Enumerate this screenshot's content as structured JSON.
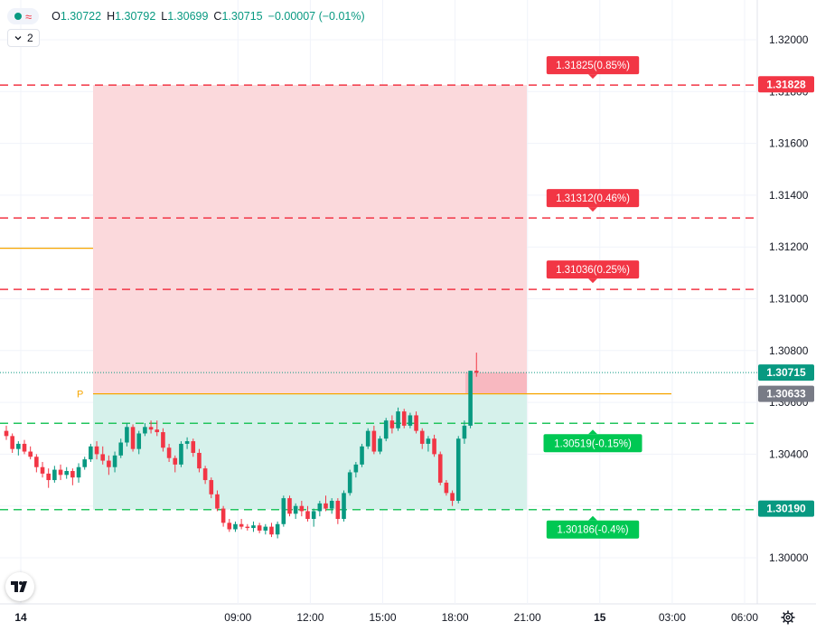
{
  "symbol_legend": {
    "dot_icon": "green-status-dot",
    "wave_icon": "wave-icon",
    "open_label": "O",
    "open": "1.30722",
    "high_label": "H",
    "high": "1.30792",
    "low_label": "L",
    "low": "1.30699",
    "close_label": "C",
    "close": "1.30715",
    "change": "−0.00007 (−0.01%)"
  },
  "indicator_toggle": {
    "icon": "chevron-down-icon",
    "count": "2"
  },
  "price_axis": {
    "ticks": [
      "1.32000",
      "1.31800",
      "1.31600",
      "1.31400",
      "1.31200",
      "1.31000",
      "1.30800",
      "1.30600",
      "1.30400",
      "1.30200",
      "1.30000"
    ],
    "badges": [
      {
        "label": "1.31828",
        "value": 1.31828,
        "color": "#f23645"
      },
      {
        "label": "1.30715",
        "value": 1.30715,
        "color": "#089981"
      },
      {
        "label": "1.30633",
        "value": 1.30633,
        "color": "#787b86"
      },
      {
        "label": "1.30190",
        "value": 1.3019,
        "color": "#089981"
      }
    ]
  },
  "time_axis": {
    "ticks": [
      "03:00",
      "14",
      "09:00",
      "12:00",
      "15:00",
      "18:00",
      "21:00",
      "15",
      "03:00",
      "06:00"
    ],
    "bold_ticks": [
      "14",
      "15"
    ]
  },
  "colors": {
    "up": "#089981",
    "down": "#f23645",
    "stop_zone": "#fbd9dc",
    "target_zone": "#d6f1eb",
    "stop_line": "#f23645",
    "target_line": "#22c55e",
    "pivot": "#f7a600"
  },
  "chart_data": {
    "type": "candlestick",
    "ylim": [
      1.2985,
      1.3211
    ],
    "grid": true,
    "pivot_label": "P",
    "pivot_price": 1.30633,
    "prior_level": 1.31195,
    "last_price": 1.30715,
    "time_ticks": [
      "03:00",
      "14",
      "09:00",
      "12:00",
      "15:00",
      "18:00",
      "21:00",
      "15",
      "03:00",
      "06:00"
    ],
    "upper_lines": [
      {
        "price": 1.31825,
        "label": "1.31825(0.85%)"
      },
      {
        "price": 1.31312,
        "label": "1.31312(0.46%)"
      },
      {
        "price": 1.31036,
        "label": "1.31036(0.25%)"
      }
    ],
    "lower_lines": [
      {
        "price": 1.30519,
        "label": "1.30519(-0.15%)"
      },
      {
        "price": 1.30186,
        "label": "1.30186(-0.4%)"
      }
    ],
    "position_box": {
      "from": "14 00:00",
      "to": "14 23:00",
      "stop_price": 1.31825,
      "entry_price": 1.30633,
      "target_price": 1.30186
    },
    "pivot_line_from": "14 00:00",
    "pivot_line_to": "15 05:00",
    "candles_start": "13 22:30",
    "candle_interval_minutes": 15,
    "candles": [
      [
        1.3049,
        1.3051,
        1.30455,
        1.3047
      ],
      [
        1.3047,
        1.3048,
        1.30405,
        1.3042
      ],
      [
        1.3042,
        1.3045,
        1.30395,
        1.3044
      ],
      [
        1.3044,
        1.30455,
        1.304,
        1.3041
      ],
      [
        1.3041,
        1.3043,
        1.3038,
        1.3039
      ],
      [
        1.3039,
        1.304,
        1.3033,
        1.3035
      ],
      [
        1.3035,
        1.3037,
        1.3031,
        1.30325
      ],
      [
        1.30325,
        1.30345,
        1.3027,
        1.303
      ],
      [
        1.303,
        1.30355,
        1.3029,
        1.3034
      ],
      [
        1.3034,
        1.3036,
        1.303,
        1.3032
      ],
      [
        1.3032,
        1.3035,
        1.30305,
        1.30335
      ],
      [
        1.30335,
        1.30345,
        1.3028,
        1.3031
      ],
      [
        1.3031,
        1.30365,
        1.3029,
        1.3035
      ],
      [
        1.3035,
        1.3039,
        1.3034,
        1.3038
      ],
      [
        1.3038,
        1.3044,
        1.3037,
        1.3043
      ],
      [
        1.3043,
        1.3045,
        1.3038,
        1.304
      ],
      [
        1.304,
        1.3043,
        1.3036,
        1.30375
      ],
      [
        1.30375,
        1.30395,
        1.3032,
        1.3035
      ],
      [
        1.3035,
        1.3041,
        1.3033,
        1.30395
      ],
      [
        1.30395,
        1.3046,
        1.30385,
        1.30445
      ],
      [
        1.30445,
        1.3052,
        1.3043,
        1.30505
      ],
      [
        1.30505,
        1.30515,
        1.3041,
        1.3042
      ],
      [
        1.3042,
        1.3049,
        1.304,
        1.3048
      ],
      [
        1.3048,
        1.3052,
        1.3047,
        1.30505
      ],
      [
        1.30505,
        1.3053,
        1.3048,
        1.30495
      ],
      [
        1.30495,
        1.3053,
        1.3047,
        1.30485
      ],
      [
        1.30485,
        1.305,
        1.3041,
        1.30425
      ],
      [
        1.30425,
        1.3044,
        1.3037,
        1.30385
      ],
      [
        1.30385,
        1.30395,
        1.3033,
        1.3036
      ],
      [
        1.3036,
        1.3045,
        1.3035,
        1.3044
      ],
      [
        1.3044,
        1.30465,
        1.3042,
        1.3045
      ],
      [
        1.3045,
        1.3046,
        1.3039,
        1.30405
      ],
      [
        1.30405,
        1.3042,
        1.3033,
        1.30345
      ],
      [
        1.30345,
        1.30355,
        1.30285,
        1.303
      ],
      [
        1.303,
        1.3031,
        1.3023,
        1.30245
      ],
      [
        1.30245,
        1.3026,
        1.3018,
        1.3019
      ],
      [
        1.3019,
        1.302,
        1.3012,
        1.30135
      ],
      [
        1.30135,
        1.3015,
        1.301,
        1.3011
      ],
      [
        1.3011,
        1.3014,
        1.301,
        1.3013
      ],
      [
        1.3013,
        1.3015,
        1.3011,
        1.3012
      ],
      [
        1.3012,
        1.3013,
        1.30105,
        1.30115
      ],
      [
        1.30115,
        1.3014,
        1.301,
        1.30125
      ],
      [
        1.30125,
        1.30135,
        1.30095,
        1.30105
      ],
      [
        1.30105,
        1.3013,
        1.3009,
        1.3012
      ],
      [
        1.3012,
        1.30135,
        1.3008,
        1.3009
      ],
      [
        1.3009,
        1.3014,
        1.30075,
        1.3013
      ],
      [
        1.3013,
        1.3024,
        1.3012,
        1.3023
      ],
      [
        1.3023,
        1.3024,
        1.3016,
        1.3017
      ],
      [
        1.3017,
        1.3021,
        1.3015,
        1.302
      ],
      [
        1.302,
        1.3022,
        1.3016,
        1.3018
      ],
      [
        1.3018,
        1.302,
        1.3014,
        1.3015
      ],
      [
        1.3015,
        1.3019,
        1.3012,
        1.3018
      ],
      [
        1.3018,
        1.3022,
        1.3016,
        1.3021
      ],
      [
        1.3021,
        1.3024,
        1.3018,
        1.3019
      ],
      [
        1.3019,
        1.3023,
        1.3017,
        1.3022
      ],
      [
        1.3022,
        1.3023,
        1.3013,
        1.3015
      ],
      [
        1.3015,
        1.3026,
        1.3014,
        1.3025
      ],
      [
        1.3025,
        1.3034,
        1.3024,
        1.3033
      ],
      [
        1.3033,
        1.3037,
        1.3031,
        1.3036
      ],
      [
        1.3036,
        1.3044,
        1.3035,
        1.3043
      ],
      [
        1.3043,
        1.305,
        1.3042,
        1.3049
      ],
      [
        1.3049,
        1.3051,
        1.304,
        1.3041
      ],
      [
        1.3041,
        1.3047,
        1.304,
        1.3046
      ],
      [
        1.3046,
        1.3054,
        1.3045,
        1.3053
      ],
      [
        1.3053,
        1.3055,
        1.3048,
        1.305
      ],
      [
        1.305,
        1.3058,
        1.3049,
        1.30565
      ],
      [
        1.30565,
        1.30575,
        1.305,
        1.3051
      ],
      [
        1.3051,
        1.3056,
        1.305,
        1.3055
      ],
      [
        1.3055,
        1.30565,
        1.3048,
        1.3049
      ],
      [
        1.3049,
        1.305,
        1.3042,
        1.3044
      ],
      [
        1.3044,
        1.3047,
        1.3041,
        1.3046
      ],
      [
        1.3046,
        1.30475,
        1.3039,
        1.304
      ],
      [
        1.304,
        1.3041,
        1.3028,
        1.3029
      ],
      [
        1.3029,
        1.303,
        1.3024,
        1.3025
      ],
      [
        1.3025,
        1.3026,
        1.302,
        1.3022
      ],
      [
        1.3022,
        1.3047,
        1.3021,
        1.3046
      ],
      [
        1.3046,
        1.3053,
        1.3044,
        1.3051
      ],
      [
        1.3051,
        1.30722,
        1.305,
        1.30722
      ],
      [
        1.30722,
        1.30792,
        1.30699,
        1.30715
      ]
    ]
  }
}
